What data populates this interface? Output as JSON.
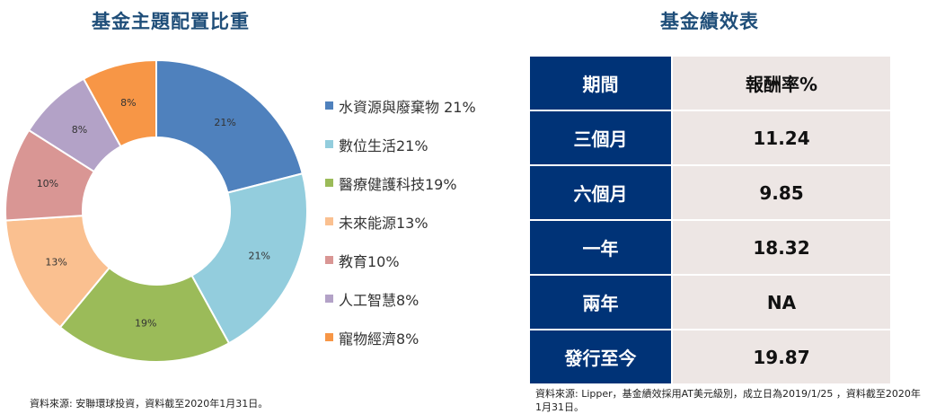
{
  "left": {
    "title": "基金主題配置比重",
    "source": "資料來源: 安聯環球投資，資料截至2020年1月31日。"
  },
  "right": {
    "title": "基金績效表",
    "header": {
      "period": "期間",
      "return": "報酬率%"
    },
    "rows": [
      {
        "period": "三個月",
        "value": "11.24"
      },
      {
        "period": "六個月",
        "value": "9.85"
      },
      {
        "period": "一年",
        "value": "18.32"
      },
      {
        "period": "兩年",
        "value": "NA"
      },
      {
        "period": "發行至今",
        "value": "19.87"
      }
    ],
    "source": "資料來源: Lipper，基金績效採用AT美元級別，成立日為2019/1/25 ，資料截至2020年1月31日。"
  },
  "chart_data": {
    "type": "pie",
    "categories": [
      "水資源與廢棄物",
      "數位生活",
      "醫療健護科技",
      "未來能源",
      "教育",
      "人工智慧",
      "寵物經濟"
    ],
    "values": [
      21,
      21,
      19,
      13,
      10,
      8,
      8
    ],
    "data_labels": [
      "21%",
      "21%",
      "19%",
      "13%",
      "10%",
      "8%",
      "8%"
    ],
    "legend_labels": [
      "水資源與廢棄物 21%",
      "數位生活21%",
      "醫療健護科技19%",
      "未來能源13%",
      "教育10%",
      "人工智慧8%",
      "寵物經濟8%"
    ],
    "colors": [
      "#4f81bd",
      "#93cddd",
      "#9bbb59",
      "#fac090",
      "#d99694",
      "#b3a2c7",
      "#f79646"
    ],
    "donut": true,
    "legend_position": "right"
  }
}
